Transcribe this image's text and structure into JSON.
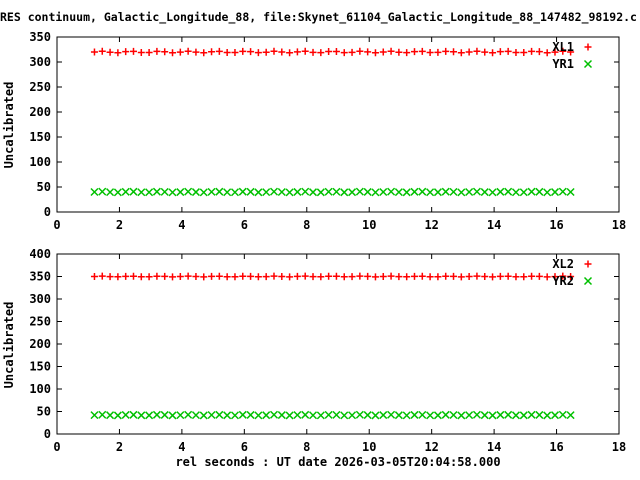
{
  "title": "RES continuum, Galactic_Longitude_88, file:Skynet_61104_Galactic_Longitude_88_147482_98192.c",
  "colors": {
    "background": "#ffffff",
    "axis": "#000000",
    "series_red": "#ff0000",
    "series_green": "#00c000"
  },
  "chart_data": [
    {
      "type": "scatter",
      "title": "",
      "xlabel": "",
      "ylabel": "Uncalibrated",
      "xlim": [
        0,
        18
      ],
      "ylim": [
        0,
        350
      ],
      "x_ticks": [
        0,
        2,
        4,
        6,
        8,
        10,
        12,
        14,
        16,
        18
      ],
      "y_ticks": [
        0,
        50,
        100,
        150,
        200,
        250,
        300,
        350
      ],
      "grid": false,
      "legend_position": "top-right-inside",
      "series": [
        {
          "name": "XL1",
          "marker": "plus",
          "color": "#ff0000",
          "x_start": 1.2,
          "x_step": 0.25,
          "n_points": 62,
          "y_value": 320,
          "y_jitter": 3
        },
        {
          "name": "YR1",
          "marker": "cross",
          "color": "#00c000",
          "x_start": 1.2,
          "x_step": 0.25,
          "n_points": 62,
          "y_value": 40,
          "y_jitter": 1.5
        }
      ]
    },
    {
      "type": "scatter",
      "title": "",
      "xlabel": "rel seconds : UT date 2026-03-05T20:04:58.000",
      "ylabel": "Uncalibrated",
      "xlim": [
        0,
        18
      ],
      "ylim": [
        0,
        400
      ],
      "x_ticks": [
        0,
        2,
        4,
        6,
        8,
        10,
        12,
        14,
        16,
        18
      ],
      "y_ticks": [
        0,
        50,
        100,
        150,
        200,
        250,
        300,
        350,
        400
      ],
      "grid": false,
      "legend_position": "top-right-inside",
      "series": [
        {
          "name": "XL2",
          "marker": "plus",
          "color": "#ff0000",
          "x_start": 1.2,
          "x_step": 0.25,
          "n_points": 62,
          "y_value": 350,
          "y_jitter": 1.5
        },
        {
          "name": "YR2",
          "marker": "cross",
          "color": "#00c000",
          "x_start": 1.2,
          "x_step": 0.25,
          "n_points": 62,
          "y_value": 42,
          "y_jitter": 1.5
        }
      ]
    }
  ]
}
